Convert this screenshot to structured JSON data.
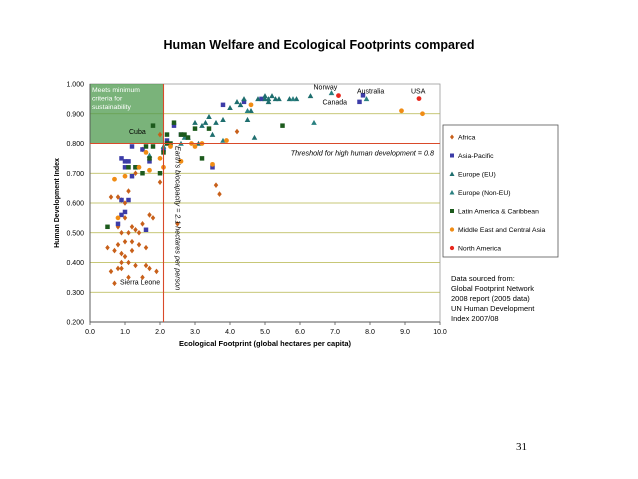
{
  "page_number": "31",
  "source": [
    "Data sourced from:",
    "Global Footprint Network",
    "2008 report (2005 data)",
    "UN Human Development",
    "Index 2007/08"
  ],
  "chart_data": {
    "type": "scatter",
    "title": "Human Welfare and Ecological Footprints compared",
    "xlabel": "Ecological Footprint (global hectares per capita)",
    "ylabel": "Human Development Index",
    "xlim": [
      0,
      10
    ],
    "ylim": [
      0.2,
      1.0
    ],
    "x_ticks": [
      "0.0",
      "1.0",
      "2.0",
      "3.0",
      "4.0",
      "5.0",
      "6.0",
      "7.0",
      "8.0",
      "9.0",
      "10.0"
    ],
    "y_ticks": [
      "0.200",
      "0.300",
      "0.400",
      "0.500",
      "0.600",
      "0.700",
      "0.800",
      "0.900",
      "1.000"
    ],
    "grid": true,
    "legend_position": "right",
    "zone_label": [
      "Meets minimum",
      "criteria for",
      "sustainability"
    ],
    "threshold_label": "Threshold for high human development = 0.8",
    "threshold_y": 0.8,
    "biocapacity_label": "Earth's biocapacity = 2.1 hectares per person",
    "biocapacity_x": 2.1,
    "country_labels": [
      {
        "text": "Norway",
        "x": 6.9,
        "y": 0.968
      },
      {
        "text": "Canada",
        "x": 7.1,
        "y": 0.961
      },
      {
        "text": "Australia",
        "x": 7.8,
        "y": 0.962
      },
      {
        "text": "USA",
        "x": 9.4,
        "y": 0.951
      },
      {
        "text": "Cuba",
        "x": 1.8,
        "y": 0.838
      },
      {
        "text": "Sierra Leone",
        "x": 0.8,
        "y": 0.336
      }
    ],
    "series": [
      {
        "name": "Africa",
        "color": "#c8601a",
        "marker": "diamond",
        "points": [
          [
            0.5,
            0.45
          ],
          [
            0.6,
            0.37
          ],
          [
            0.7,
            0.33
          ],
          [
            0.7,
            0.44
          ],
          [
            0.8,
            0.38
          ],
          [
            0.8,
            0.46
          ],
          [
            0.8,
            0.52
          ],
          [
            0.9,
            0.5
          ],
          [
            0.9,
            0.43
          ],
          [
            0.9,
            0.38
          ],
          [
            1.0,
            0.47
          ],
          [
            1.0,
            0.42
          ],
          [
            1.0,
            0.55
          ],
          [
            1.1,
            0.35
          ],
          [
            1.1,
            0.5
          ],
          [
            1.1,
            0.4
          ],
          [
            1.2,
            0.47
          ],
          [
            1.2,
            0.52
          ],
          [
            1.2,
            0.44
          ],
          [
            1.3,
            0.51
          ],
          [
            1.3,
            0.39
          ],
          [
            1.4,
            0.5
          ],
          [
            1.5,
            0.53
          ],
          [
            1.5,
            0.35
          ],
          [
            1.6,
            0.39
          ],
          [
            1.6,
            0.45
          ],
          [
            1.7,
            0.38
          ],
          [
            1.8,
            0.55
          ],
          [
            1.9,
            0.37
          ],
          [
            0.8,
            0.62
          ],
          [
            1.0,
            0.6
          ],
          [
            1.1,
            0.64
          ],
          [
            2.0,
            0.67
          ],
          [
            2.0,
            0.83
          ],
          [
            3.6,
            0.66
          ],
          [
            3.7,
            0.63
          ],
          [
            0.6,
            0.62
          ],
          [
            0.9,
            0.4
          ],
          [
            1.4,
            0.46
          ],
          [
            1.7,
            0.56
          ],
          [
            2.5,
            0.53
          ],
          [
            4.2,
            0.84
          ],
          [
            1.3,
            0.7
          ],
          [
            0.9,
            0.61
          ],
          [
            1.5,
            0.78
          ]
        ]
      },
      {
        "name": "Asia-Pacific",
        "color": "#3c3ca8",
        "marker": "square",
        "points": [
          [
            0.8,
            0.53
          ],
          [
            0.9,
            0.56
          ],
          [
            0.9,
            0.61
          ],
          [
            1.0,
            0.57
          ],
          [
            1.0,
            0.72
          ],
          [
            1.1,
            0.61
          ],
          [
            1.1,
            0.74
          ],
          [
            1.2,
            0.69
          ],
          [
            1.0,
            0.74
          ],
          [
            0.9,
            0.75
          ],
          [
            1.3,
            0.72
          ],
          [
            1.6,
            0.51
          ],
          [
            1.7,
            0.74
          ],
          [
            2.1,
            0.78
          ],
          [
            2.2,
            0.81
          ],
          [
            2.4,
            0.86
          ],
          [
            3.5,
            0.72
          ],
          [
            3.8,
            0.93
          ],
          [
            4.4,
            0.94
          ],
          [
            4.9,
            0.95
          ],
          [
            7.7,
            0.94
          ],
          [
            7.8,
            0.962
          ],
          [
            1.2,
            0.79
          ],
          [
            2.6,
            0.83
          ],
          [
            1.5,
            0.78
          ]
        ]
      },
      {
        "name": "Europe (EU)",
        "color": "#1e6e6e",
        "marker": "triangle",
        "points": [
          [
            3.0,
            0.87
          ],
          [
            3.2,
            0.86
          ],
          [
            3.3,
            0.87
          ],
          [
            3.4,
            0.89
          ],
          [
            3.6,
            0.87
          ],
          [
            3.8,
            0.88
          ],
          [
            4.0,
            0.92
          ],
          [
            4.2,
            0.94
          ],
          [
            4.3,
            0.93
          ],
          [
            4.4,
            0.95
          ],
          [
            4.6,
            0.91
          ],
          [
            4.8,
            0.95
          ],
          [
            5.0,
            0.95
          ],
          [
            5.1,
            0.94
          ],
          [
            5.2,
            0.96
          ],
          [
            5.3,
            0.95
          ],
          [
            5.4,
            0.95
          ],
          [
            5.7,
            0.95
          ],
          [
            5.9,
            0.95
          ],
          [
            6.3,
            0.96
          ],
          [
            3.1,
            0.8
          ],
          [
            3.5,
            0.83
          ],
          [
            4.5,
            0.88
          ],
          [
            5.0,
            0.96
          ],
          [
            5.1,
            0.95
          ],
          [
            4.7,
            0.82
          ],
          [
            2.8,
            0.82
          ]
        ]
      },
      {
        "name": "Europe (Non-EU)",
        "color": "#2a8080",
        "marker": "triangle",
        "points": [
          [
            1.7,
            0.76
          ],
          [
            2.1,
            0.79
          ],
          [
            2.6,
            0.8
          ],
          [
            2.7,
            0.82
          ],
          [
            3.8,
            0.81
          ],
          [
            4.5,
            0.91
          ],
          [
            5.8,
            0.95
          ],
          [
            6.4,
            0.87
          ],
          [
            6.9,
            0.97
          ],
          [
            7.9,
            0.95
          ]
        ]
      },
      {
        "name": "Latin America & Caribbean",
        "color": "#1c5a1c",
        "marker": "square",
        "points": [
          [
            0.5,
            0.52
          ],
          [
            1.1,
            0.72
          ],
          [
            1.3,
            0.72
          ],
          [
            1.5,
            0.7
          ],
          [
            1.6,
            0.79
          ],
          [
            1.7,
            0.75
          ],
          [
            1.8,
            0.86
          ],
          [
            2.0,
            0.7
          ],
          [
            2.1,
            0.77
          ],
          [
            2.2,
            0.8
          ],
          [
            2.3,
            0.8
          ],
          [
            2.4,
            0.87
          ],
          [
            2.6,
            0.83
          ],
          [
            2.7,
            0.83
          ],
          [
            2.8,
            0.82
          ],
          [
            3.0,
            0.85
          ],
          [
            3.2,
            0.75
          ],
          [
            3.4,
            0.85
          ],
          [
            5.5,
            0.86
          ],
          [
            2.2,
            0.83
          ],
          [
            1.8,
            0.79
          ]
        ]
      },
      {
        "name": "Middle East and Central Asia",
        "color": "#f08c14",
        "marker": "circle",
        "points": [
          [
            0.7,
            0.68
          ],
          [
            0.8,
            0.55
          ],
          [
            1.0,
            0.69
          ],
          [
            1.4,
            0.72
          ],
          [
            1.6,
            0.77
          ],
          [
            1.7,
            0.71
          ],
          [
            2.0,
            0.75
          ],
          [
            2.1,
            0.72
          ],
          [
            2.3,
            0.79
          ],
          [
            2.6,
            0.74
          ],
          [
            3.2,
            0.8
          ],
          [
            3.5,
            0.73
          ],
          [
            3.9,
            0.81
          ],
          [
            4.6,
            0.93
          ],
          [
            8.9,
            0.91
          ],
          [
            9.5,
            0.9
          ],
          [
            2.9,
            0.8
          ],
          [
            3.0,
            0.79
          ]
        ]
      },
      {
        "name": "North America",
        "color": "#e8281e",
        "marker": "circle",
        "points": [
          [
            7.1,
            0.961
          ],
          [
            9.4,
            0.951
          ]
        ]
      }
    ]
  }
}
